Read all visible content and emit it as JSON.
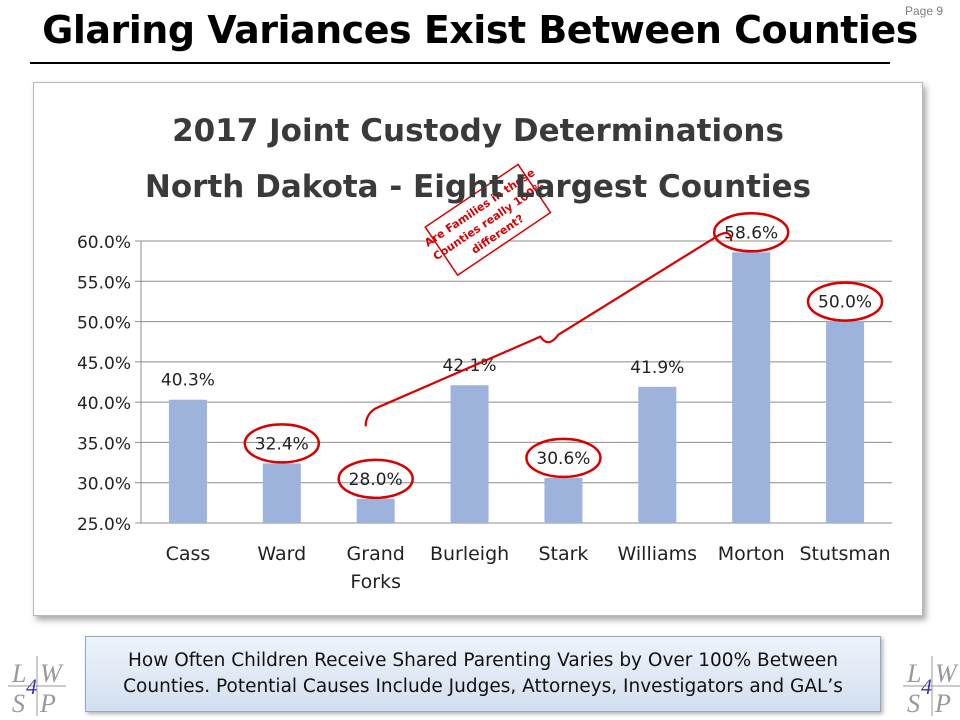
{
  "page": {
    "number_label": "Page 9"
  },
  "slide": {
    "title": "Glaring Variances Exist Between Counties",
    "caption_line1": "How Often Children Receive Shared Parenting Varies by Over 100% Between",
    "caption_line2": "Counties. Potential Causes Include Judges, Attorneys, Investigators and GAL’s"
  },
  "logo": {
    "text_l": "L",
    "text_w": "W",
    "text_s": "S",
    "text_p": "P",
    "text_4": "4"
  },
  "chart_data": {
    "type": "bar",
    "title_line1": "2017 Joint Custody Determinations",
    "title_line2": "North Dakota - Eight Largest Counties",
    "categories": [
      [
        "Cass"
      ],
      [
        "Ward"
      ],
      [
        "Grand",
        "Forks"
      ],
      [
        "Burleigh"
      ],
      [
        "Stark"
      ],
      [
        "Williams"
      ],
      [
        "Morton"
      ],
      [
        "Stutsman"
      ]
    ],
    "values": [
      40.3,
      32.4,
      28.0,
      42.1,
      30.6,
      41.9,
      58.6,
      50.0
    ],
    "data_labels": [
      "40.3%",
      "32.4%",
      "28.0%",
      "42.1%",
      "30.6%",
      "41.9%",
      "58.6%",
      "50.0%"
    ],
    "circled": [
      false,
      true,
      true,
      false,
      true,
      false,
      true,
      true
    ],
    "ylim": [
      25,
      60
    ],
    "yticks": [
      25,
      30,
      35,
      40,
      45,
      50,
      55,
      60
    ],
    "ytick_labels": [
      "25.0%",
      "30.0%",
      "35.0%",
      "40.0%",
      "45.0%",
      "50.0%",
      "55.0%",
      "60.0%"
    ],
    "grid": true,
    "bar_color": "#9db3dc",
    "highlight_color": "#d90000",
    "annotation": {
      "lines": [
        "Are Families in these",
        "Counties really 100%",
        "different?"
      ],
      "anchor_value": 37,
      "from_category_index": 2,
      "to_category_index": 6
    }
  }
}
